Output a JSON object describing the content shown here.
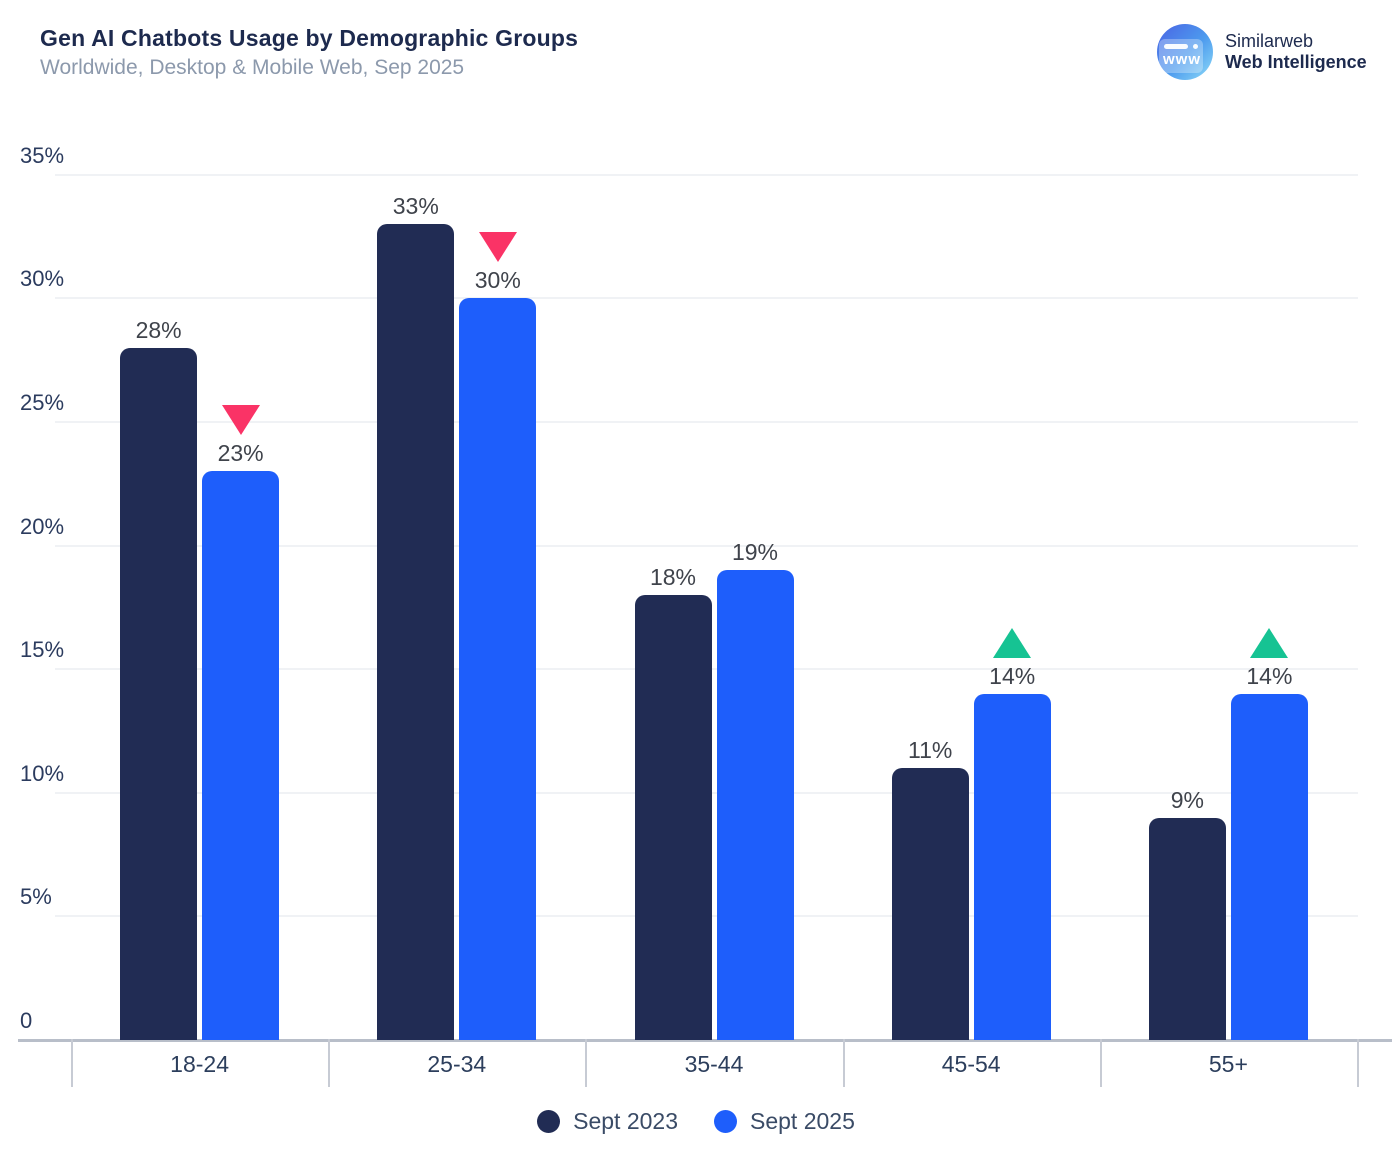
{
  "header": {
    "title": "Gen AI Chatbots Usage by Demographic Groups",
    "subtitle": "Worldwide, Desktop & Mobile Web, Sep 2025"
  },
  "logo": {
    "brand": "Similarweb",
    "product": "Web Intelligence",
    "glyph_text": "www"
  },
  "chart_data": {
    "type": "bar",
    "title": "Gen AI Chatbots Usage by Demographic Groups",
    "subtitle": "Worldwide, Desktop & Mobile Web, Sep 2025",
    "categories": [
      "18-24",
      "25-34",
      "35-44",
      "45-54",
      "55+"
    ],
    "series": [
      {
        "name": "Sept 2023",
        "color": "#212c54",
        "values": [
          28,
          33,
          18,
          11,
          9
        ]
      },
      {
        "name": "Sept 2025",
        "color": "#1e5efb",
        "values": [
          23,
          30,
          19,
          14,
          14
        ]
      }
    ],
    "value_suffix": "%",
    "trend_arrows": [
      {
        "category": "18-24",
        "direction": "down"
      },
      {
        "category": "25-34",
        "direction": "down"
      },
      {
        "category": "45-54",
        "direction": "up"
      },
      {
        "category": "55+",
        "direction": "up"
      }
    ],
    "arrow_colors": {
      "up": "#16c393",
      "down": "#fa3366"
    },
    "y_axis": {
      "min": 0,
      "max": 35,
      "step": 5,
      "ticks": [
        "0",
        "5%",
        "10%",
        "15%",
        "20%",
        "25%",
        "30%",
        "35%"
      ]
    },
    "grid": true,
    "legend_position": "bottom"
  }
}
